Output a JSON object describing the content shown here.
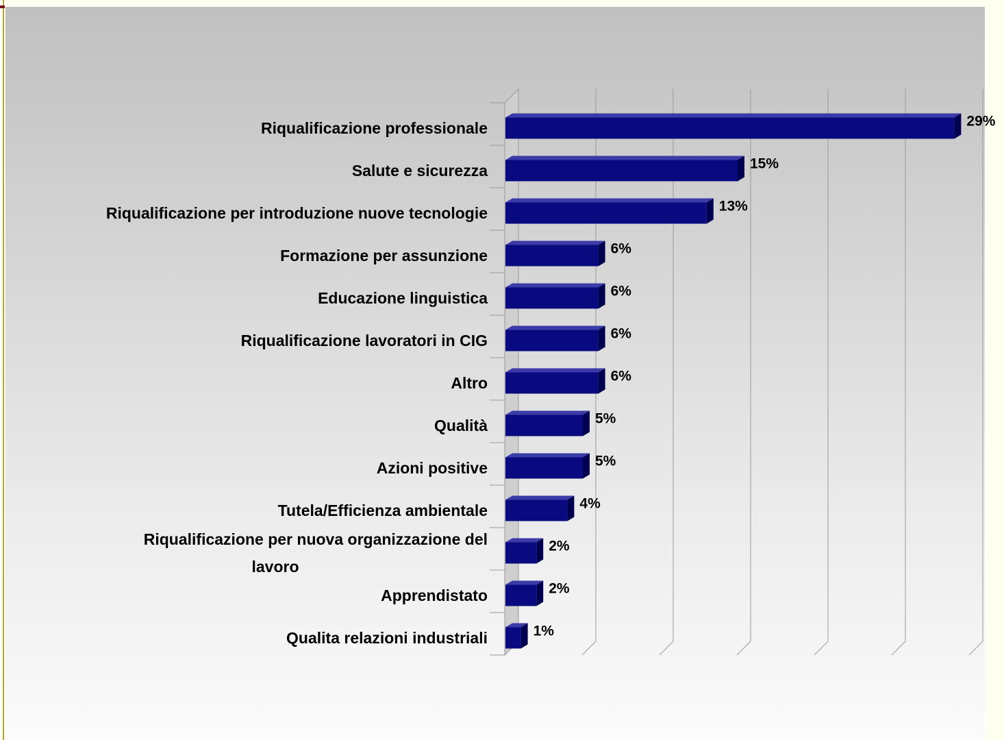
{
  "chart_data": {
    "type": "bar",
    "orientation": "horizontal",
    "three_d": true,
    "title": "",
    "xlabel": "",
    "ylabel": "",
    "categories": [
      "Riqualificazione professionale",
      "Salute e sicurezza",
      "Riqualificazione per introduzione nuove tecnologie",
      "Formazione per assunzione",
      "Educazione linguistica",
      "Riqualificazione lavoratori in CIG",
      "Altro",
      "Qualità",
      "Azioni positive",
      "Tutela/Efficienza ambientale",
      "Riqualificazione per nuova organizzazione del lavoro",
      "Apprendistato",
      "Qualita relazioni industriali"
    ],
    "category_lines": [
      [
        "Riqualificazione professionale"
      ],
      [
        "Salute e sicurezza"
      ],
      [
        "Riqualificazione per introduzione nuove tecnologie"
      ],
      [
        "Formazione per assunzione"
      ],
      [
        "Educazione linguistica"
      ],
      [
        "Riqualificazione lavoratori in CIG"
      ],
      [
        "Altro"
      ],
      [
        "Qualità"
      ],
      [
        "Azioni positive"
      ],
      [
        "Tutela/Efficienza ambientale"
      ],
      [
        "Riqualificazione per nuova organizzazione del",
        "lavoro"
      ],
      [
        "Apprendistato"
      ],
      [
        "Qualita relazioni industriali"
      ]
    ],
    "values": [
      29,
      15,
      13,
      6,
      6,
      6,
      6,
      5,
      5,
      4,
      2,
      2,
      1
    ],
    "value_labels": [
      "29%",
      "15%",
      "13%",
      "6%",
      "6%",
      "6%",
      "6%",
      "5%",
      "5%",
      "4%",
      "2%",
      "2%",
      "1%"
    ],
    "xlim": [
      0,
      30
    ],
    "grid": true,
    "legend": "none",
    "colors": {
      "bar_front": "#0a0a80",
      "bar_top": "#3a3aa8",
      "bar_side": "#000050",
      "grid": "#9a9a9a"
    }
  }
}
